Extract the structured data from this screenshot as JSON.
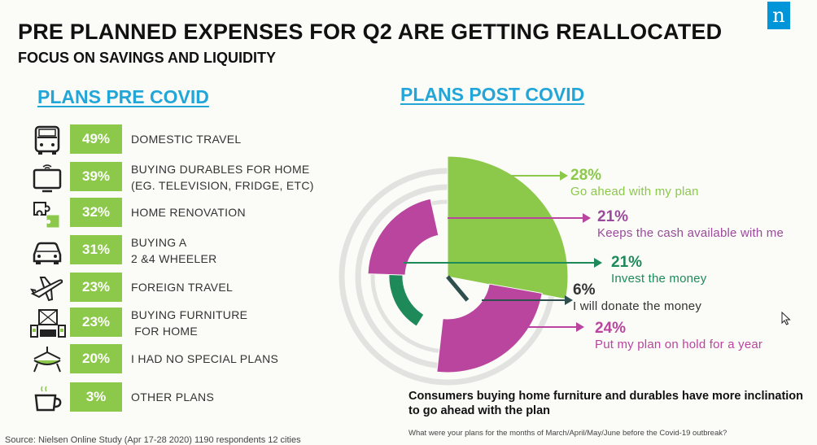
{
  "title": "PRE PLANNED EXPENSES FOR Q2 ARE GETTING REALLOCATED",
  "subtitle": "FOCUS ON SAVINGS AND LIQUIDITY",
  "logo_letter": "n",
  "pre_covid_heading": "PLANS PRE COVID",
  "post_covid_heading": "PLANS POST COVID",
  "takeaway": "Consumers buying home furniture and durables have more inclination to go ahead with the plan",
  "question_note": "What were your plans for the months of March/April/May/June  before  the Covid-19  outbreak?",
  "source": "Source: Nielsen  Online  Study  (Apr 17-28 2020)  1190 respondents 12  cities",
  "colors": {
    "bar_green": "#8cc94a",
    "heading_blue": "#22a6d8",
    "lime": "#8cc94a",
    "magenta": "#b9459e",
    "purple": "#9a4a9a",
    "dark_green": "#1e8a5a",
    "dark_slate": "#2f4f4f"
  },
  "chart_data": [
    {
      "type": "bar",
      "title": "PLANS PRE COVID",
      "categories": [
        {
          "label_lines": [
            "DOMESTIC TRAVEL"
          ],
          "icon": "bus-icon"
        },
        {
          "label_lines": [
            "BUYING DURABLES FOR HOME",
            "(EG. TELEVISION, FRIDGE, ETC)"
          ],
          "icon": "tv-icon"
        },
        {
          "label_lines": [
            "HOME RENOVATION"
          ],
          "icon": "puzzle-icon"
        },
        {
          "label_lines": [
            "BUYING A",
            "2 &4 WHEELER"
          ],
          "icon": "car-icon"
        },
        {
          "label_lines": [
            "FOREIGN TRAVEL"
          ],
          "icon": "airplane-icon"
        },
        {
          "label_lines": [
            "BUYING FURNITURE",
            " FOR HOME"
          ],
          "icon": "furniture-icon"
        },
        {
          "label_lines": [
            "I HAD NO SPECIAL PLANS"
          ],
          "icon": "hammock-icon"
        },
        {
          "label_lines": [
            "OTHER PLANS"
          ],
          "icon": "cup-icon"
        }
      ],
      "values": [
        49,
        39,
        32,
        31,
        23,
        23,
        20,
        3
      ],
      "value_labels": [
        "49%",
        "39%",
        "32%",
        "31%",
        "23%",
        "23%",
        "20%",
        "3%"
      ]
    },
    {
      "type": "pie",
      "title": "PLANS POST COVID",
      "slices": [
        {
          "label": "Go ahead with my plan",
          "value": 28,
          "value_label": "28%",
          "color": "#8cc94a"
        },
        {
          "label": "Keeps the cash available with me",
          "value": 21,
          "value_label": "21%",
          "color": "#b9459e"
        },
        {
          "label": "Invest the money",
          "value": 21,
          "value_label": "21%",
          "color": "#1e8a5a"
        },
        {
          "label": "I will donate the money",
          "value": 6,
          "value_label": "6%",
          "color": "#2f4f4f"
        },
        {
          "label": "Put my plan on hold for a year",
          "value": 24,
          "value_label": "24%",
          "color": "#b9459e"
        }
      ]
    }
  ]
}
